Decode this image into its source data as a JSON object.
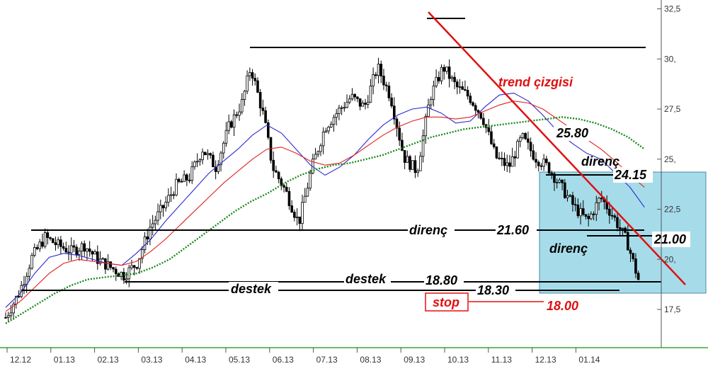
{
  "chart_data": {
    "type": "line",
    "title": "",
    "xlabel": "",
    "ylabel": "",
    "ylim": [
      16.5,
      32.8
    ],
    "x_ticks": [
      "12.12",
      "01.13",
      "02.13",
      "03.13",
      "04.13",
      "05.13",
      "06.13",
      "07.13",
      "08.13",
      "09.13",
      "10.13",
      "11.13",
      "12.13",
      "01.14"
    ],
    "y_ticks": [
      {
        "value": 17.5,
        "label": "17,5"
      },
      {
        "value": 20.0,
        "label": "20,"
      },
      {
        "value": 22.5,
        "label": "22,5"
      },
      {
        "value": 25.0,
        "label": "25,"
      },
      {
        "value": 27.5,
        "label": "27,5"
      },
      {
        "value": 30.0,
        "label": "30,"
      },
      {
        "value": 32.5,
        "label": "32,5"
      }
    ],
    "grid": false,
    "price_path": [
      [
        0.0,
        17.1
      ],
      [
        0.3,
        18.3
      ],
      [
        0.6,
        20.1
      ],
      [
        0.9,
        21.1
      ],
      [
        1.2,
        20.7
      ],
      [
        1.5,
        20.4
      ],
      [
        1.8,
        20.7
      ],
      [
        2.1,
        20.0
      ],
      [
        2.4,
        19.6
      ],
      [
        2.7,
        19.2
      ],
      [
        3.0,
        19.8
      ],
      [
        3.3,
        21.6
      ],
      [
        3.6,
        22.6
      ],
      [
        3.9,
        23.7
      ],
      [
        4.2,
        24.1
      ],
      [
        4.5,
        25.5
      ],
      [
        4.8,
        24.6
      ],
      [
        5.1,
        26.6
      ],
      [
        5.4,
        27.8
      ],
      [
        5.6,
        29.6
      ],
      [
        5.9,
        27.1
      ],
      [
        6.1,
        24.6
      ],
      [
        6.4,
        23.4
      ],
      [
        6.7,
        21.8
      ],
      [
        7.0,
        24.6
      ],
      [
        7.3,
        26.6
      ],
      [
        7.6,
        27.4
      ],
      [
        7.9,
        28.1
      ],
      [
        8.2,
        27.6
      ],
      [
        8.5,
        29.6
      ],
      [
        8.8,
        28.1
      ],
      [
        9.1,
        25.1
      ],
      [
        9.4,
        24.4
      ],
      [
        9.7,
        28.1
      ],
      [
        10.0,
        29.6
      ],
      [
        10.3,
        28.6
      ],
      [
        10.6,
        28.1
      ],
      [
        10.9,
        27.1
      ],
      [
        11.2,
        25.1
      ],
      [
        11.5,
        24.6
      ],
      [
        11.8,
        26.1
      ],
      [
        12.1,
        25.1
      ],
      [
        12.4,
        24.6
      ],
      [
        12.7,
        23.6
      ],
      [
        13.0,
        22.6
      ],
      [
        13.3,
        21.9
      ],
      [
        13.6,
        23.1
      ],
      [
        13.9,
        22.1
      ],
      [
        14.2,
        20.9
      ],
      [
        14.5,
        18.7
      ]
    ],
    "series": [
      {
        "type": "moving-average",
        "color": "#2a2ad0",
        "values": [
          17.6,
          18.3,
          19.3,
          20.1,
          20.3,
          20.2,
          20.0,
          19.8,
          19.7,
          20.3,
          21.0,
          21.9,
          22.7,
          23.5,
          24.3,
          24.9,
          25.5,
          26.2,
          26.7,
          26.3,
          25.5,
          24.7,
          24.2,
          24.6,
          25.2,
          26.0,
          26.7,
          27.2,
          27.5,
          27.6,
          27.3,
          26.8,
          26.9,
          27.6,
          28.2,
          28.3,
          27.9,
          27.2,
          26.4,
          25.8,
          25.3,
          25.0,
          24.3,
          23.6,
          22.6
        ]
      },
      {
        "type": "moving-average",
        "color": "#e02020",
        "values": [
          17.4,
          17.9,
          18.6,
          19.3,
          19.8,
          20.0,
          19.9,
          19.8,
          19.7,
          19.9,
          20.4,
          21.0,
          21.7,
          22.4,
          23.1,
          23.8,
          24.4,
          25.0,
          25.5,
          25.6,
          25.3,
          24.9,
          24.7,
          24.8,
          25.2,
          25.7,
          26.2,
          26.6,
          26.9,
          27.1,
          27.1,
          27.0,
          27.1,
          27.4,
          27.7,
          27.9,
          27.8,
          27.5,
          27.0,
          26.5,
          26.0,
          25.5,
          24.9,
          24.2,
          23.6
        ]
      },
      {
        "type": "moving-average",
        "color": "#1a8a1a",
        "values": [
          16.8,
          17.3,
          17.8,
          18.3,
          18.7,
          19.0,
          19.1,
          19.2,
          19.3,
          19.6,
          20.0,
          20.6,
          21.2,
          21.8,
          22.4,
          22.9,
          23.3,
          23.8,
          24.2,
          24.5,
          24.7,
          24.8,
          25.0,
          25.2,
          25.5,
          25.8,
          26.1,
          26.3,
          26.5,
          26.6,
          26.7,
          26.8,
          26.9,
          27.0,
          27.1,
          27.0,
          26.8,
          26.5,
          26.1,
          25.5
        ]
      }
    ],
    "annotations": {
      "trend_label": "trend çizgisi",
      "r_2580": "25.80",
      "direnc_upper": "direnç",
      "r_2415": "24.15",
      "direnc_mid": "direnç",
      "r_2160": "21.60",
      "r_2100": "21.00",
      "direnc_lower": "direnç",
      "destek_left": "destek",
      "destek_mid": "destek",
      "s_1880": "18.80",
      "s_1830": "18.30",
      "stop": "stop",
      "stop_value": "18.00"
    },
    "colors": {
      "trendline": "#e01010",
      "highlight_box": "#a6dcea",
      "stop_box": "#e01010",
      "level_lines": "#000000"
    }
  }
}
